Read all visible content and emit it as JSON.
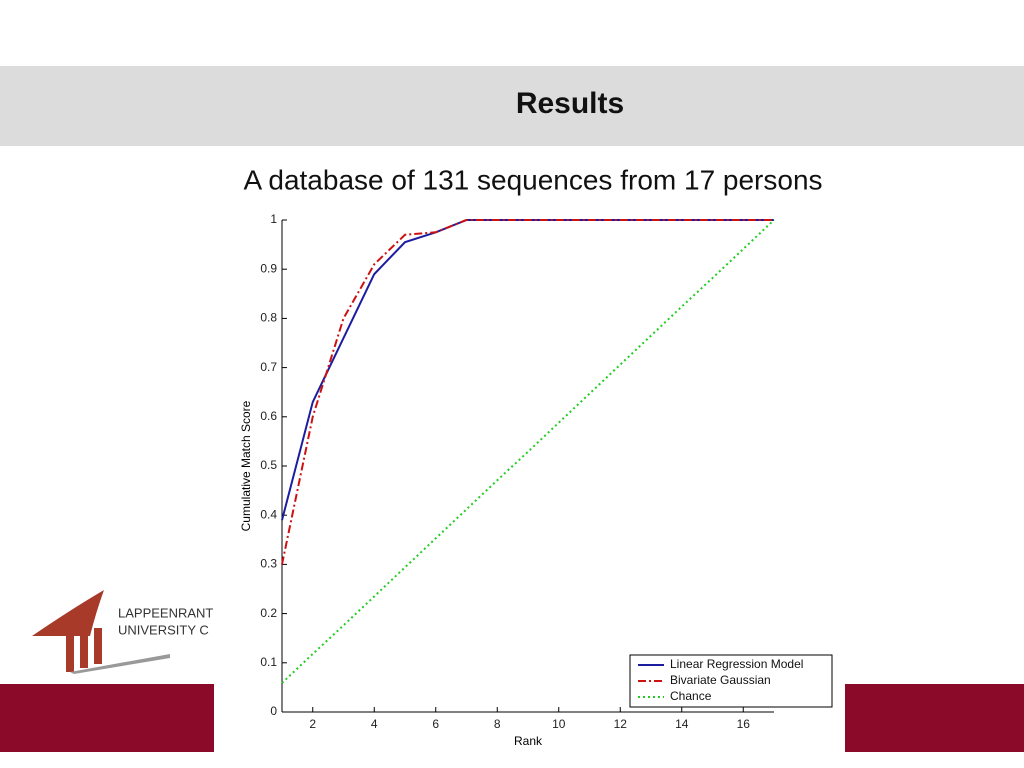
{
  "slide": {
    "title": "Results",
    "subtitle": "A database of 131 sequences from 17 persons",
    "logo": [
      "LAPPEENRANT",
      "UNIVERSITY C"
    ]
  },
  "chart_data": {
    "type": "line",
    "x_label": "Rank",
    "y_label": "Cumulative Match Score",
    "x": [
      1,
      2,
      3,
      4,
      5,
      6,
      7,
      8,
      9,
      10,
      11,
      12,
      13,
      14,
      15,
      16,
      17
    ],
    "series": [
      {
        "name": "Linear Regression Model",
        "color": "#1c1ca0",
        "dash": "solid",
        "values": [
          0.39,
          0.63,
          0.76,
          0.89,
          0.955,
          0.975,
          1,
          1,
          1,
          1,
          1,
          1,
          1,
          1,
          1,
          1,
          1
        ]
      },
      {
        "name": "Bivariate Gaussian",
        "color": "#cc1111",
        "dash": "dashdot",
        "values": [
          0.3,
          0.6,
          0.8,
          0.91,
          0.97,
          0.975,
          1,
          1,
          1,
          1,
          1,
          1,
          1,
          1,
          1,
          1,
          1
        ]
      },
      {
        "name": "Chance",
        "color": "#22cc22",
        "dash": "dotted",
        "values": [
          0.059,
          0.118,
          0.176,
          0.235,
          0.294,
          0.353,
          0.412,
          0.471,
          0.529,
          0.588,
          0.647,
          0.706,
          0.765,
          0.824,
          0.882,
          0.941,
          1
        ]
      }
    ],
    "xlim": [
      1,
      17
    ],
    "xticks": [
      2,
      4,
      6,
      8,
      10,
      12,
      14,
      16
    ],
    "ylim": [
      0,
      1
    ],
    "yticks": [
      0,
      0.1,
      0.2,
      0.3,
      0.4,
      0.5,
      0.6,
      0.7,
      0.8,
      0.9,
      1
    ],
    "legend": "bottom-right"
  }
}
